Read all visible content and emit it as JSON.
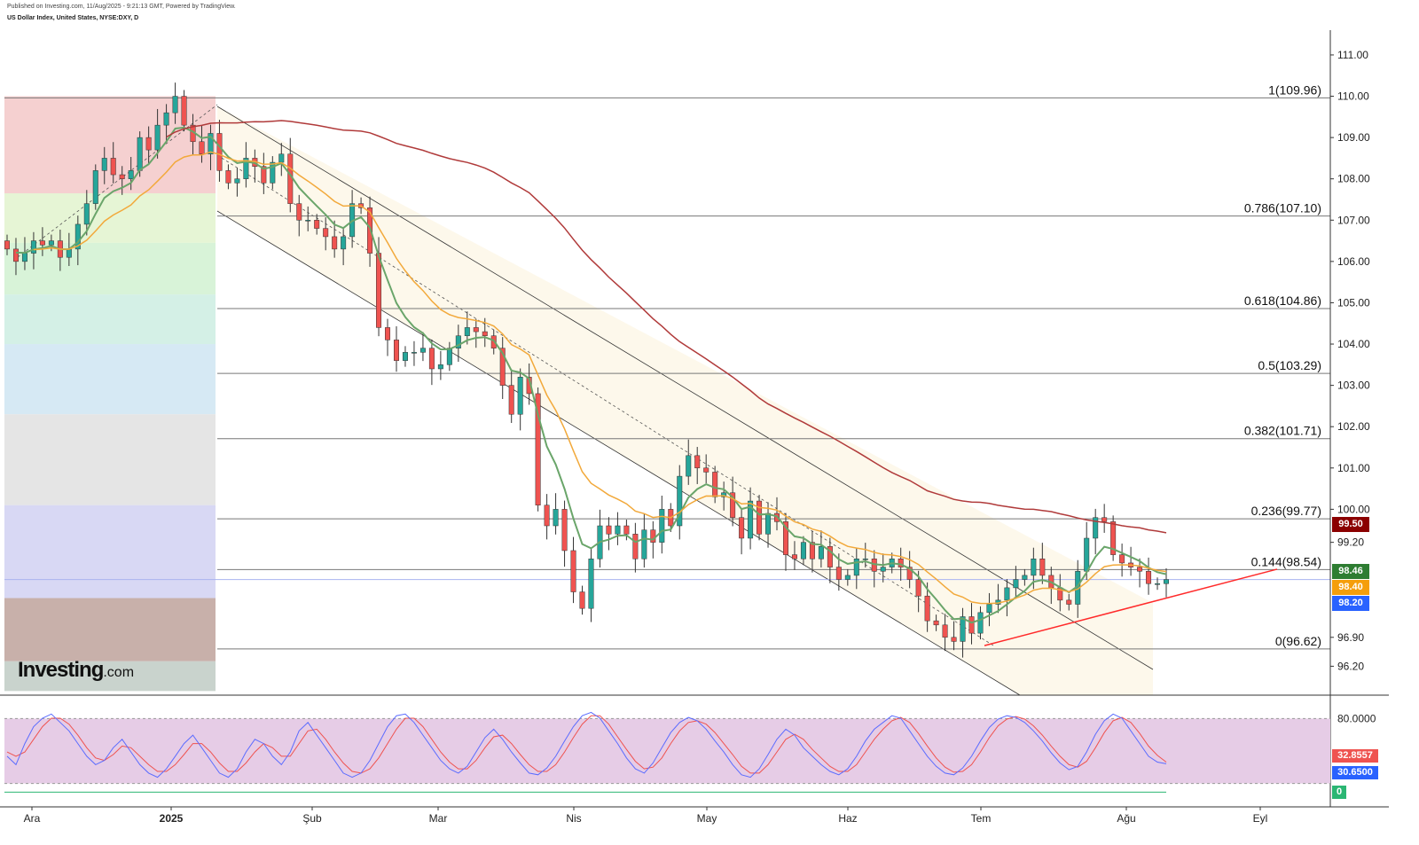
{
  "header": {
    "published": "Published on Investing.com, 11/Aug/2025 - 9:21:13 GMT, Powered by TradingView.",
    "symbol": "US Dollar Index, United States, NYSE:DXY, D"
  },
  "logo": {
    "main": "Investing",
    "suffix": ".com"
  },
  "colors": {
    "up": "#26a69a",
    "down": "#ef5350",
    "ema_fast": "#6aa56a",
    "ema_mid": "#f2a93b",
    "ema_slow": "#b03a3a",
    "stoch_k": "#5b6cff",
    "stoch_d": "#ef5350",
    "trend_red": "#ff2a2a"
  },
  "chart_data": [
    {
      "type": "candlestick",
      "title": "US Dollar Index, United States, NYSE:DXY, D",
      "x_labels": [
        "Ara",
        "2025",
        "Şub",
        "Mar",
        "Nis",
        "May",
        "Haz",
        "Tem",
        "Ağu",
        "Eyl"
      ],
      "y_ticks": [
        "111.00",
        "110.00",
        "109.00",
        "108.00",
        "107.00",
        "106.00",
        "105.00",
        "104.00",
        "103.00",
        "102.00",
        "101.00",
        "100.00",
        "99.20",
        "96.90",
        "96.20"
      ],
      "ylim": [
        95.5,
        111.6
      ],
      "fibonacci": [
        {
          "label": "1(109.96)",
          "value": 109.96
        },
        {
          "label": "0.786(107.10)",
          "value": 107.1
        },
        {
          "label": "0.618(104.86)",
          "value": 104.86
        },
        {
          "label": "0.5(103.29)",
          "value": 103.29
        },
        {
          "label": "0.382(101.71)",
          "value": 101.71
        },
        {
          "label": "0.236(99.77)",
          "value": 99.77
        },
        {
          "label": "0.144(98.54)",
          "value": 98.54
        },
        {
          "label": "0(96.62)",
          "value": 96.62
        }
      ],
      "price_labels": [
        {
          "text": "99.50",
          "value": 99.5,
          "color": "#8b0000"
        },
        {
          "text": "98.46",
          "value": 98.46,
          "color": "#2e7d32"
        },
        {
          "text": "98.40",
          "value": 98.4,
          "color": "#f59e0b"
        },
        {
          "text": "98.20",
          "value": 98.2,
          "color": "#2962ff"
        }
      ],
      "series_close": [
        106.3,
        106.0,
        106.2,
        106.5,
        106.4,
        106.5,
        106.1,
        106.3,
        106.9,
        107.4,
        108.2,
        108.5,
        108.1,
        108.0,
        108.2,
        109.0,
        108.7,
        109.3,
        109.6,
        110.0,
        109.3,
        108.9,
        108.6,
        109.1,
        108.2,
        107.9,
        108.0,
        108.5,
        108.3,
        107.9,
        108.4,
        108.6,
        107.4,
        107.0,
        107.0,
        106.8,
        106.6,
        106.3,
        106.6,
        107.4,
        107.3,
        106.2,
        104.4,
        104.1,
        103.6,
        103.8,
        103.8,
        103.9,
        103.4,
        103.5,
        103.9,
        104.2,
        104.4,
        104.3,
        104.2,
        103.9,
        103.0,
        102.3,
        103.2,
        102.8,
        100.1,
        99.6,
        100.0,
        99.0,
        98.0,
        97.6,
        98.8,
        99.6,
        99.4,
        99.6,
        99.4,
        98.8,
        99.5,
        99.2,
        100.0,
        99.6,
        100.8,
        101.3,
        101.0,
        100.9,
        100.3,
        100.4,
        99.8,
        99.3,
        100.2,
        99.4,
        99.9,
        99.7,
        98.9,
        98.8,
        99.2,
        98.8,
        99.1,
        98.6,
        98.3,
        98.4,
        98.8,
        98.8,
        98.5,
        98.6,
        98.8,
        98.6,
        98.3,
        97.9,
        97.3,
        97.2,
        96.9,
        96.8,
        97.4,
        97.0,
        97.5,
        97.7,
        97.8,
        98.1,
        98.3,
        98.4,
        98.8,
        98.4,
        98.1,
        97.8,
        97.7,
        98.5,
        99.3,
        99.8,
        99.7,
        98.9,
        98.7,
        98.6,
        98.5,
        98.2,
        98.2,
        98.3
      ],
      "ema_fast": "green moving average",
      "ema_mid": "orange moving average",
      "ema_slow": "dark red moving average"
    },
    {
      "type": "line",
      "title": "",
      "y_ticks": [
        "80.0000"
      ],
      "values_labels": [
        {
          "text": "32.8557",
          "color": "#ef5350"
        },
        {
          "text": "30.6500",
          "color": "#2962ff"
        },
        {
          "text": "0",
          "color": "#2bb673"
        }
      ],
      "ylim": [
        0,
        100
      ],
      "stoch_k": [
        40,
        30,
        55,
        75,
        85,
        90,
        80,
        70,
        55,
        40,
        30,
        35,
        50,
        60,
        45,
        30,
        20,
        15,
        25,
        40,
        55,
        65,
        50,
        35,
        20,
        15,
        25,
        45,
        60,
        55,
        40,
        30,
        45,
        70,
        80,
        65,
        50,
        35,
        20,
        15,
        20,
        35,
        55,
        75,
        88,
        90,
        80,
        65,
        50,
        35,
        25,
        20,
        28,
        45,
        62,
        72,
        60,
        45,
        32,
        20,
        18,
        26,
        40,
        58,
        75,
        88,
        92,
        85,
        70,
        55,
        38,
        25,
        20,
        32,
        50,
        68,
        80,
        86,
        82,
        72,
        58,
        45,
        30,
        18,
        15,
        25,
        42,
        60,
        72,
        65,
        50,
        40,
        30,
        22,
        18,
        25,
        40,
        58,
        72,
        80,
        88,
        85,
        70,
        55,
        40,
        28,
        20,
        18,
        26,
        40,
        58,
        74,
        84,
        88,
        86,
        80,
        70,
        58,
        44,
        32,
        24,
        28,
        45,
        66,
        82,
        90,
        85,
        70,
        55,
        40,
        33,
        31
      ],
      "stoch_d": [
        45,
        40,
        45,
        60,
        75,
        85,
        85,
        78,
        65,
        50,
        38,
        35,
        42,
        52,
        50,
        40,
        30,
        22,
        22,
        30,
        42,
        55,
        55,
        45,
        32,
        22,
        22,
        32,
        45,
        55,
        50,
        40,
        40,
        55,
        70,
        72,
        60,
        45,
        32,
        22,
        20,
        25,
        38,
        55,
        72,
        85,
        85,
        75,
        60,
        45,
        33,
        25,
        25,
        35,
        50,
        63,
        65,
        55,
        42,
        30,
        22,
        22,
        30,
        45,
        62,
        78,
        88,
        88,
        78,
        63,
        48,
        34,
        25,
        27,
        38,
        55,
        70,
        80,
        82,
        78,
        68,
        55,
        42,
        28,
        20,
        20,
        30,
        45,
        60,
        66,
        60,
        48,
        38,
        28,
        22,
        22,
        30,
        45,
        60,
        72,
        82,
        86,
        80,
        67,
        52,
        38,
        27,
        21,
        22,
        30,
        45,
        62,
        76,
        84,
        87,
        84,
        76,
        65,
        52,
        40,
        30,
        27,
        34,
        50,
        68,
        82,
        86,
        80,
        67,
        52,
        41,
        33
      ]
    }
  ]
}
